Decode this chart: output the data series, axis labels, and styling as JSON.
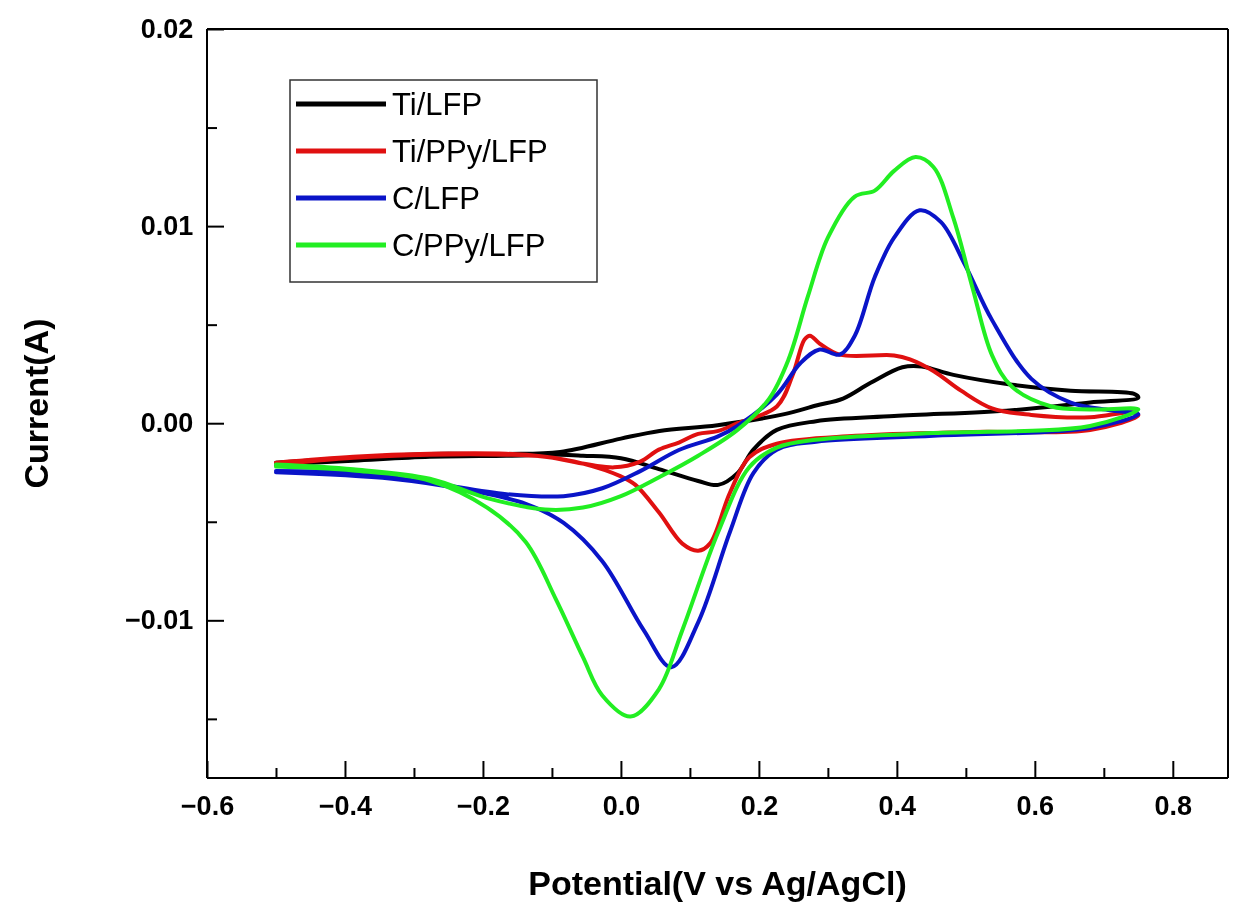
{
  "chart_data": {
    "type": "line",
    "xlabel": "Potential(V vs Ag/AgCl)",
    "ylabel": "Current(A)",
    "xlim": [
      -0.6,
      0.88
    ],
    "ylim": [
      -0.018,
      0.02
    ],
    "xticks": [
      {
        "value": -0.6,
        "label": "−0.6"
      },
      {
        "value": -0.5,
        "label": null
      },
      {
        "value": -0.4,
        "label": "−0.4"
      },
      {
        "value": -0.3,
        "label": null
      },
      {
        "value": -0.2,
        "label": "−0.2"
      },
      {
        "value": -0.1,
        "label": null
      },
      {
        "value": 0,
        "label": "0.0"
      },
      {
        "value": 0.1,
        "label": null
      },
      {
        "value": 0.2,
        "label": "0.2"
      },
      {
        "value": 0.3,
        "label": null
      },
      {
        "value": 0.4,
        "label": "0.4"
      },
      {
        "value": 0.5,
        "label": null
      },
      {
        "value": 0.6,
        "label": "0.6"
      },
      {
        "value": 0.7,
        "label": null
      },
      {
        "value": 0.8,
        "label": "0.8"
      }
    ],
    "yticks": [
      {
        "value": -0.015,
        "label": null
      },
      {
        "value": -0.01,
        "label": "−0.01"
      },
      {
        "value": -0.005,
        "label": null
      },
      {
        "value": 0,
        "label": "0.00"
      },
      {
        "value": 0.005,
        "label": null
      },
      {
        "value": 0.01,
        "label": "0.01"
      },
      {
        "value": 0.015,
        "label": null
      },
      {
        "value": 0.02,
        "label": "0.02"
      }
    ],
    "legend": "top left",
    "series": [
      {
        "name": "Ti/LFP",
        "color": "#000000",
        "x": [
          -0.5,
          -0.388,
          -0.277,
          -0.166,
          -0.088,
          0.0,
          0.056,
          0.14,
          0.237,
          0.283,
          0.322,
          0.362,
          0.408,
          0.436,
          0.482,
          0.567,
          0.652,
          0.743,
          0.75,
          0.68,
          0.567,
          0.396,
          0.283,
          0.226,
          0.192,
          0.169,
          0.141,
          0.112,
          0.055,
          0.0,
          -0.055,
          -0.088,
          -0.166,
          -0.277,
          -0.388,
          -0.5
        ],
        "values": [
          -0.002,
          -0.00175,
          -0.00156,
          -0.00156,
          -0.00146,
          -0.00078,
          -0.00039,
          -0.0001,
          0.00046,
          0.0009,
          0.00125,
          0.00205,
          0.00284,
          0.00288,
          0.00245,
          0.00195,
          0.00165,
          0.0015,
          0.0013,
          0.00105,
          0.00066,
          0.00036,
          0.0001,
          -0.00034,
          -0.00134,
          -0.00253,
          -0.00313,
          -0.00293,
          -0.00233,
          -0.00178,
          -0.00165,
          -0.0016,
          -0.00165,
          -0.0017,
          -0.0019,
          -0.0021
        ]
      },
      {
        "name": "Ti/PPy/LFP",
        "color": "#e01010",
        "x": [
          -0.5,
          -0.388,
          -0.277,
          -0.166,
          -0.11,
          -0.01,
          0.028,
          0.055,
          0.084,
          0.112,
          0.14,
          0.169,
          0.226,
          0.249,
          0.266,
          0.274,
          0.288,
          0.317,
          0.396,
          0.419,
          0.453,
          0.493,
          0.538,
          0.595,
          0.68,
          0.743,
          0.75,
          0.68,
          0.51,
          0.34,
          0.226,
          0.186,
          0.158,
          0.129,
          0.112,
          0.089,
          0.055,
          0.021,
          0.0,
          -0.055,
          -0.11,
          -0.166,
          -0.277,
          -0.388,
          -0.5
        ],
        "values": [
          -0.002,
          -0.0017,
          -0.00155,
          -0.00155,
          -0.0017,
          -0.00224,
          -0.00195,
          -0.00134,
          -0.00098,
          -0.00054,
          -0.0004,
          0.0,
          0.00085,
          0.00245,
          0.00424,
          0.00444,
          0.00404,
          0.00348,
          0.00344,
          0.00324,
          0.00265,
          0.00165,
          0.00075,
          0.00042,
          0.0003,
          0.00055,
          0.0004,
          -0.00034,
          -0.00044,
          -0.00064,
          -0.00104,
          -0.00173,
          -0.00353,
          -0.00611,
          -0.00647,
          -0.00611,
          -0.00452,
          -0.00313,
          -0.0027,
          -0.00205,
          -0.0017,
          -0.0016,
          -0.0016,
          -0.00175,
          -0.0021
        ]
      },
      {
        "name": "C/LFP",
        "color": "#0a14c8",
        "x": [
          -0.5,
          -0.388,
          -0.277,
          -0.166,
          -0.083,
          -0.027,
          0.028,
          0.084,
          0.14,
          0.169,
          0.226,
          0.26,
          0.288,
          0.317,
          0.339,
          0.368,
          0.396,
          0.433,
          0.464,
          0.499,
          0.538,
          0.595,
          0.652,
          0.709,
          0.75,
          0.68,
          0.453,
          0.283,
          0.226,
          0.192,
          0.158,
          0.112,
          0.073,
          0.033,
          -0.027,
          -0.083,
          -0.138,
          -0.221,
          -0.332,
          -0.5
        ],
        "values": [
          -0.00243,
          -0.00253,
          -0.00302,
          -0.0036,
          -0.0037,
          -0.0033,
          -0.00243,
          -0.00136,
          -0.00068,
          -0.00014,
          0.00145,
          0.00304,
          0.00374,
          0.00348,
          0.00444,
          0.00742,
          0.00941,
          0.0108,
          0.0102,
          0.00802,
          0.00523,
          0.00225,
          0.00105,
          0.00066,
          0.00046,
          -0.00024,
          -0.00064,
          -0.00094,
          -0.00134,
          -0.00253,
          -0.00552,
          -0.0101,
          -0.01238,
          -0.0105,
          -0.007,
          -0.00506,
          -0.00409,
          -0.0034,
          -0.00282,
          -0.00249
        ]
      },
      {
        "name": "C/PPy/LFP",
        "color": "#22ee22",
        "x": [
          -0.5,
          -0.388,
          -0.277,
          -0.194,
          -0.11,
          -0.055,
          0.0,
          0.056,
          0.112,
          0.169,
          0.215,
          0.243,
          0.271,
          0.3,
          0.339,
          0.368,
          0.396,
          0.427,
          0.453,
          0.482,
          0.51,
          0.538,
          0.567,
          0.624,
          0.68,
          0.75,
          0.68,
          0.453,
          0.283,
          0.226,
          0.186,
          0.141,
          0.089,
          0.055,
          0.014,
          -0.027,
          -0.055,
          -0.094,
          -0.138,
          -0.194,
          -0.277,
          -0.388,
          -0.5
        ],
        "values": [
          -0.0021,
          -0.00234,
          -0.00282,
          -0.0038,
          -0.00438,
          -0.00428,
          -0.0037,
          -0.00273,
          -0.00165,
          -0.00034,
          0.00125,
          0.00324,
          0.00643,
          0.00941,
          0.0115,
          0.0118,
          0.0128,
          0.0135,
          0.013,
          0.0104,
          0.00683,
          0.00344,
          0.00185,
          0.00085,
          0.0007,
          0.0007,
          -0.00014,
          -0.0005,
          -0.00084,
          -0.00124,
          -0.00223,
          -0.00552,
          -0.0105,
          -0.0135,
          -0.01488,
          -0.01381,
          -0.01187,
          -0.00895,
          -0.00603,
          -0.00428,
          -0.00292,
          -0.0024,
          -0.0022
        ]
      }
    ]
  }
}
